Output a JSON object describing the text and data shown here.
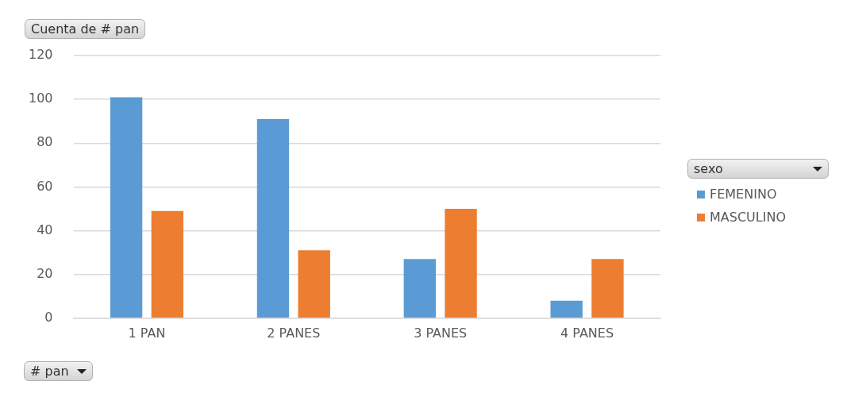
{
  "chart_data": {
    "type": "bar",
    "title": "Cuenta de # pan",
    "xlabel": "# pan",
    "legend_title": "sexo",
    "categories": [
      "1 PAN",
      "2 PANES",
      "3 PANES",
      "4 PANES"
    ],
    "series": [
      {
        "name": "FEMENINO",
        "color": "#5b9bd5",
        "values": [
          101,
          91,
          27,
          8
        ]
      },
      {
        "name": "MASCULINO",
        "color": "#ed7d31",
        "values": [
          49,
          31,
          50,
          27
        ]
      }
    ],
    "ylim": [
      0,
      120
    ],
    "yticks": [
      0,
      20,
      40,
      60,
      80,
      100,
      120
    ],
    "grid": "y",
    "legend": "right"
  }
}
